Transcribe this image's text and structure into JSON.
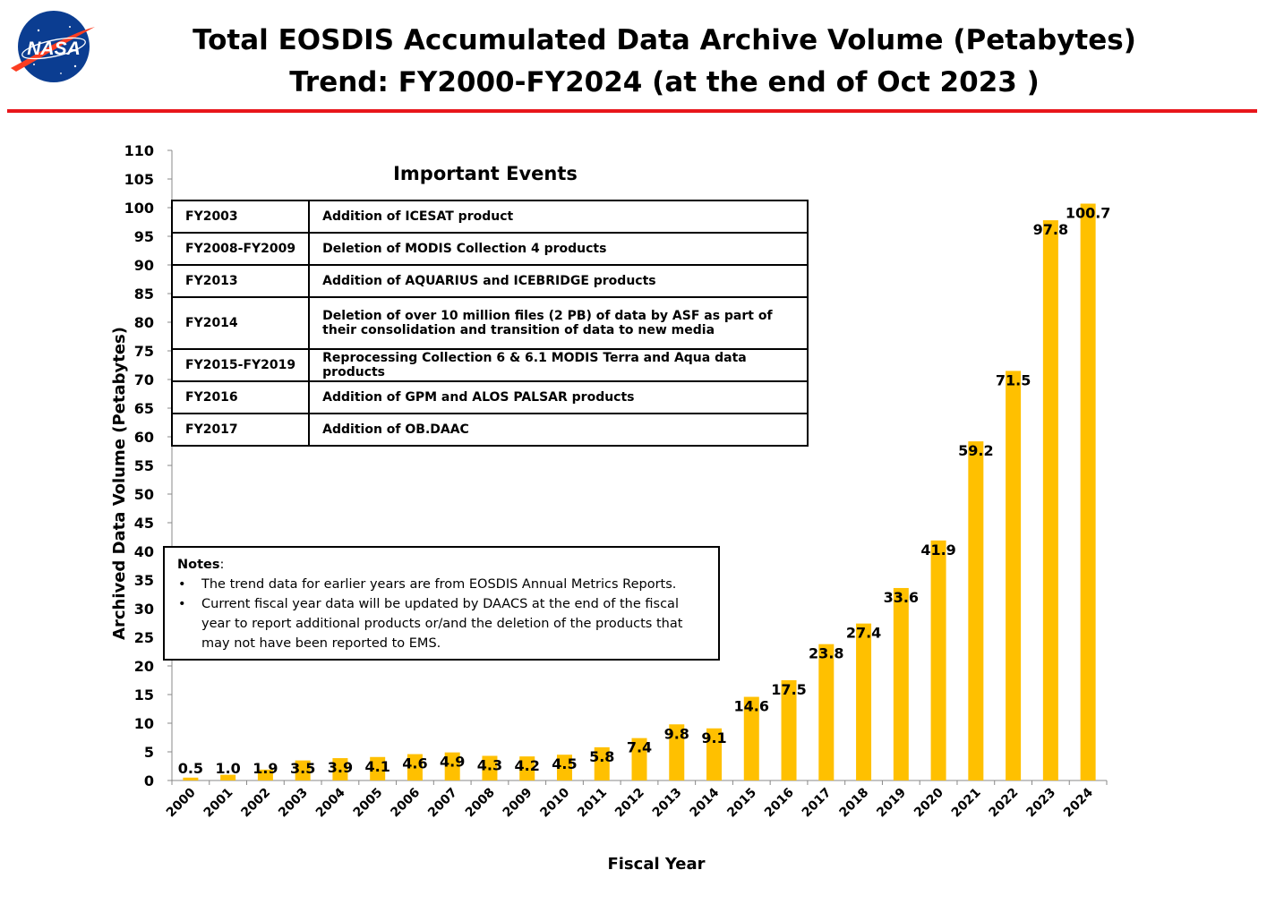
{
  "header": {
    "logo_text": "NASA",
    "title_line1": "Total EOSDIS Accumulated Data Archive Volume (Petabytes)",
    "title_line2": "Trend: FY2000-FY2024 (at the end of Oct 2023 )"
  },
  "colors": {
    "bar": "#ffc000",
    "rule": "#e8161b",
    "logo_blue": "#0b3d91",
    "logo_red": "#fc3d21"
  },
  "events": {
    "title": "Important Events",
    "rows": [
      {
        "period": "FY2003",
        "event": "Addition of ICESAT product"
      },
      {
        "period": "FY2008-FY2009",
        "event": "Deletion of  MODIS Collection 4 products"
      },
      {
        "period": "FY2013",
        "event": "Addition of AQUARIUS and ICEBRIDGE products"
      },
      {
        "period": "FY2014",
        "event": "Deletion of over 10 million files (2 PB) of data by ASF as part of their consolidation and transition of data to new media"
      },
      {
        "period": "FY2015-FY2019",
        "event": "Reprocessing  Collection 6 & 6.1 MODIS Terra and Aqua data products"
      },
      {
        "period": "FY2016",
        "event": "Addition of GPM and ALOS PALSAR products"
      },
      {
        "period": "FY2017",
        "event": "Addition of OB.DAAC"
      }
    ]
  },
  "notes": {
    "label": "Notes",
    "items": [
      "The trend data for earlier years are from EOSDIS Annual Metrics Reports.",
      "Current fiscal year data will be updated by DAACS at the end of the fiscal year to report additional products or/and the deletion of the products that may not have been reported to EMS."
    ]
  },
  "chart_data": {
    "type": "bar",
    "title": "Total EOSDIS Accumulated Data Archive Volume (Petabytes)",
    "subtitle": "Trend: FY2000-FY2024 (at the end of Oct 2023 )",
    "xlabel": "Fiscal Year",
    "ylabel": "Archived Data Volume (Petabytes)",
    "ylim": [
      0,
      110
    ],
    "ytick_step": 5,
    "grid": false,
    "categories": [
      "2000",
      "2001",
      "2002",
      "2003",
      "2004",
      "2005",
      "2006",
      "2007",
      "2008",
      "2009",
      "2010",
      "2011",
      "2012",
      "2013",
      "2014",
      "2015",
      "2016",
      "2017",
      "2018",
      "2019",
      "2020",
      "2021",
      "2022",
      "2023",
      "2024"
    ],
    "values": [
      0.5,
      1.0,
      1.9,
      3.5,
      3.9,
      4.1,
      4.6,
      4.9,
      4.3,
      4.2,
      4.5,
      5.8,
      7.4,
      9.8,
      9.1,
      14.6,
      17.5,
      23.8,
      27.4,
      33.6,
      41.9,
      59.2,
      71.5,
      97.8,
      100.7
    ],
    "labels": [
      "0.5",
      "1.0",
      "1.9",
      "3.5",
      "3.9",
      "4.1",
      "4.6",
      "4.9",
      "4.3",
      "4.2",
      "4.5",
      "5.8",
      "7.4",
      "9.8",
      "9.1",
      "14.6",
      "17.5",
      "23.8",
      "27.4",
      "33.6",
      "41.9",
      "59.2",
      "71.5",
      "97.8",
      "100.7"
    ]
  }
}
